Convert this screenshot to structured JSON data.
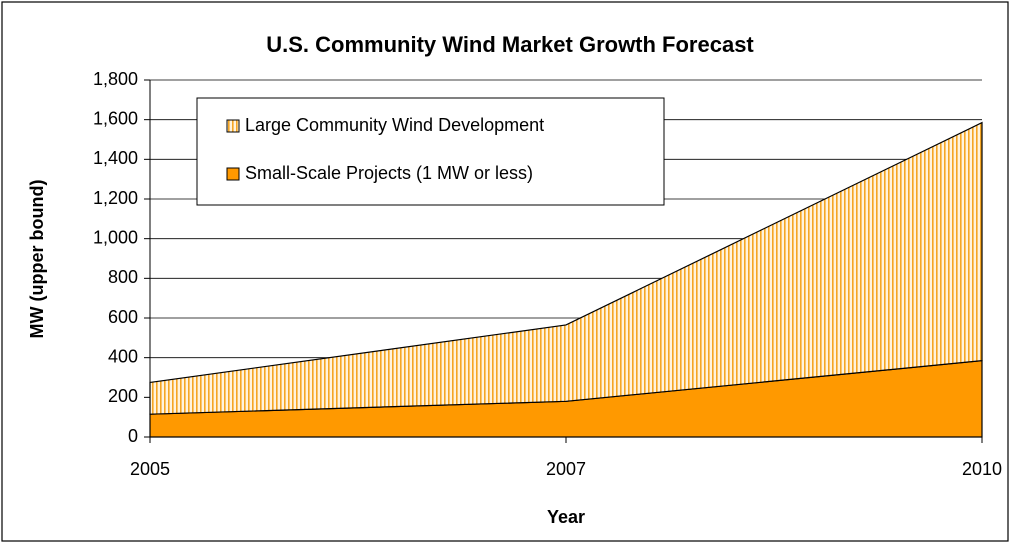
{
  "chart_data": {
    "type": "stacked_area",
    "title": "U.S. Community Wind Market Growth Forecast",
    "x_label": "Year",
    "y_label": "MW (upper bound)",
    "categories": [
      "2005",
      "2007",
      "2010"
    ],
    "series": [
      {
        "name": "Small-Scale Projects (1 MW or less)",
        "color": "#ff9900",
        "values": [
          115,
          180,
          385
        ]
      },
      {
        "name": "Large Community Wind Development",
        "color": "#f5a623",
        "pattern": "vertical-hatch",
        "values": [
          160,
          385,
          1200
        ]
      }
    ],
    "ylim": [
      0,
      1800
    ],
    "yticks": [
      0,
      200,
      400,
      600,
      800,
      {
        "value": 1000,
        "label": "1,000"
      },
      {
        "value": 1200,
        "label": "1,200"
      },
      {
        "value": 1400,
        "label": "1,400"
      },
      {
        "value": 1600,
        "label": "1,600"
      },
      {
        "value": 1800,
        "label": "1,800"
      }
    ],
    "grid": true,
    "legend": "upper-left"
  }
}
